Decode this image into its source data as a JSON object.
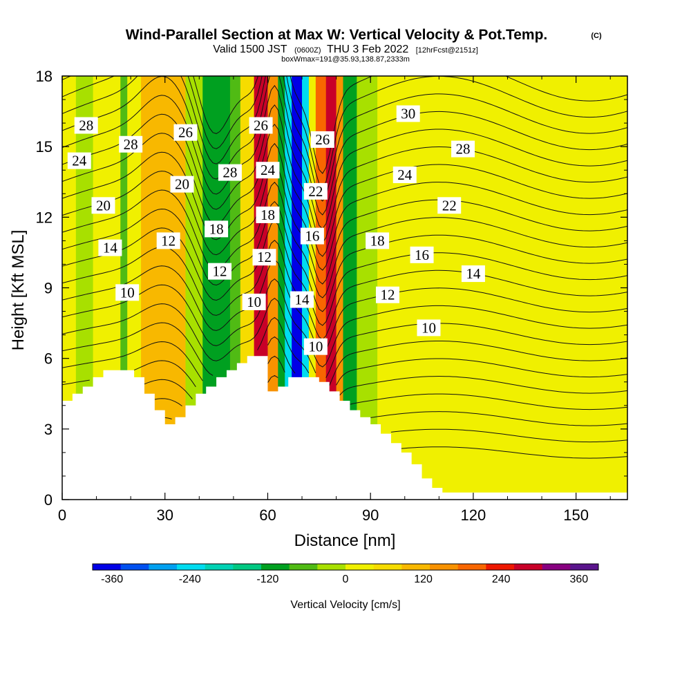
{
  "header": {
    "title": "Wind-Parallel Section at Max W: Vertical Velocity & Pot.Temp.",
    "copyright": "(C)",
    "valid_prefix": "Valid 1500 JST",
    "utc_time": "(0600Z)",
    "valid_date": "THU 3 Feb 2022",
    "forecast_info": "[12hrFcst@2151z]",
    "box_info": "boxWmax=191@35.93,138.87,2333m"
  },
  "chart_data": {
    "type": "heatmap",
    "xlabel": "Distance [nm]",
    "ylabel": "Height [Kft MSL]",
    "xlim": [
      0,
      165
    ],
    "ylim": [
      0,
      18
    ],
    "x_ticks": [
      0,
      30,
      60,
      90,
      120,
      150
    ],
    "y_ticks": [
      0,
      3,
      6,
      9,
      12,
      15,
      18
    ],
    "colorbar": {
      "label": "Vertical Velocity [cm/s]",
      "ticks": [
        -360,
        -240,
        -120,
        0,
        120,
        240,
        360
      ],
      "bins": [
        -390,
        390
      ],
      "colors": [
        "#0000e6",
        "#0050f0",
        "#00a0f0",
        "#00dcf0",
        "#00d2b4",
        "#00c882",
        "#00a020",
        "#50bb14",
        "#a8e000",
        "#f0f000",
        "#f6dc00",
        "#f8b800",
        "#f89200",
        "#f86600",
        "#ee1800",
        "#c80028",
        "#880080",
        "#5a148c"
      ]
    },
    "velocity_bands": [
      {
        "x": [
          0,
          4
        ],
        "w": 40
      },
      {
        "x": [
          4,
          9
        ],
        "w": -40
      },
      {
        "x": [
          9,
          17
        ],
        "w": 40
      },
      {
        "x": [
          17,
          19
        ],
        "w": -50
      },
      {
        "x": [
          19,
          23
        ],
        "w": 20
      },
      {
        "x": [
          23,
          36
        ],
        "w": 110
      },
      {
        "x": [
          36,
          41
        ],
        "w": -40
      },
      {
        "x": [
          41,
          49
        ],
        "w": -110
      },
      {
        "x": [
          49,
          52
        ],
        "w": -50
      },
      {
        "x": [
          52,
          56
        ],
        "w": 60
      },
      {
        "x": [
          56,
          60
        ],
        "w": 280
      },
      {
        "x": [
          60,
          63
        ],
        "w": 170
      },
      {
        "x": [
          63,
          65
        ],
        "w": -100
      },
      {
        "x": [
          65,
          67
        ],
        "w": -230
      },
      {
        "x": [
          67,
          70
        ],
        "w": -370
      },
      {
        "x": [
          70,
          72
        ],
        "w": -230
      },
      {
        "x": [
          72,
          74
        ],
        "w": 30
      },
      {
        "x": [
          74,
          77
        ],
        "w": 190
      },
      {
        "x": [
          77,
          80
        ],
        "w": 290
      },
      {
        "x": [
          80,
          82
        ],
        "w": 170
      },
      {
        "x": [
          82,
          86
        ],
        "w": -100
      },
      {
        "x": [
          86,
          92
        ],
        "w": -20
      },
      {
        "x": [
          92,
          120
        ],
        "w": 40
      },
      {
        "x": [
          120,
          130
        ],
        "w": 20
      },
      {
        "x": [
          130,
          138
        ],
        "w": 40
      },
      {
        "x": [
          138,
          148
        ],
        "w": 20
      },
      {
        "x": [
          148,
          165
        ],
        "w": 40
      }
    ],
    "terrain": {
      "x": [
        0,
        3,
        6,
        9,
        12,
        15,
        18,
        21,
        24,
        27,
        30,
        33,
        36,
        39,
        42,
        45,
        48,
        51,
        54,
        57,
        60,
        63,
        66,
        69,
        72,
        75,
        78,
        81,
        84,
        87,
        90,
        93,
        96,
        99,
        102,
        105,
        108,
        111,
        114,
        165
      ],
      "z": [
        4.2,
        4.5,
        4.8,
        5.2,
        5.5,
        5.5,
        5.5,
        5.2,
        4.5,
        3.8,
        3.2,
        3.5,
        4.0,
        4.5,
        4.8,
        5.2,
        5.5,
        5.8,
        6.1,
        6.1,
        4.6,
        4.8,
        5.2,
        5.2,
        5.2,
        5.0,
        4.6,
        4.2,
        3.8,
        3.5,
        3.2,
        2.8,
        2.4,
        2.0,
        1.5,
        0.9,
        0.5,
        0.3,
        0.3,
        0.3
      ]
    },
    "theta_contours": {
      "levels": [
        8,
        9,
        10,
        11,
        12,
        13,
        14,
        15,
        16,
        17,
        18,
        19,
        20,
        21,
        22,
        23,
        24,
        25,
        26,
        27,
        28,
        29,
        30
      ],
      "labels": [
        {
          "text": "28",
          "x": 7,
          "z": 15.9
        },
        {
          "text": "28",
          "x": 20,
          "z": 15.1
        },
        {
          "text": "26",
          "x": 36,
          "z": 15.6
        },
        {
          "text": "26",
          "x": 58,
          "z": 15.9
        },
        {
          "text": "26",
          "x": 76,
          "z": 15.3
        },
        {
          "text": "30",
          "x": 101,
          "z": 16.4
        },
        {
          "text": "28",
          "x": 117,
          "z": 14.9
        },
        {
          "text": "24",
          "x": 5,
          "z": 14.4
        },
        {
          "text": "28",
          "x": 49,
          "z": 13.9
        },
        {
          "text": "24",
          "x": 60,
          "z": 14.0
        },
        {
          "text": "24",
          "x": 100,
          "z": 13.8
        },
        {
          "text": "20",
          "x": 12,
          "z": 12.5
        },
        {
          "text": "20",
          "x": 35,
          "z": 13.4
        },
        {
          "text": "22",
          "x": 74,
          "z": 13.1
        },
        {
          "text": "22",
          "x": 113,
          "z": 12.5
        },
        {
          "text": "18",
          "x": 60,
          "z": 12.1
        },
        {
          "text": "18",
          "x": 45,
          "z": 11.5
        },
        {
          "text": "16",
          "x": 73,
          "z": 11.2
        },
        {
          "text": "18",
          "x": 92,
          "z": 11.0
        },
        {
          "text": "14",
          "x": 14,
          "z": 10.7
        },
        {
          "text": "12",
          "x": 31,
          "z": 11.0
        },
        {
          "text": "16",
          "x": 105,
          "z": 10.4
        },
        {
          "text": "12",
          "x": 59,
          "z": 10.3
        },
        {
          "text": "12",
          "x": 46,
          "z": 9.7
        },
        {
          "text": "14",
          "x": 120,
          "z": 9.6
        },
        {
          "text": "10",
          "x": 19,
          "z": 8.8
        },
        {
          "text": "10",
          "x": 56,
          "z": 8.4
        },
        {
          "text": "14",
          "x": 70,
          "z": 8.5
        },
        {
          "text": "12",
          "x": 95,
          "z": 8.7
        },
        {
          "text": "10",
          "x": 107,
          "z": 7.3
        },
        {
          "text": "10",
          "x": 74,
          "z": 6.5
        }
      ]
    }
  }
}
